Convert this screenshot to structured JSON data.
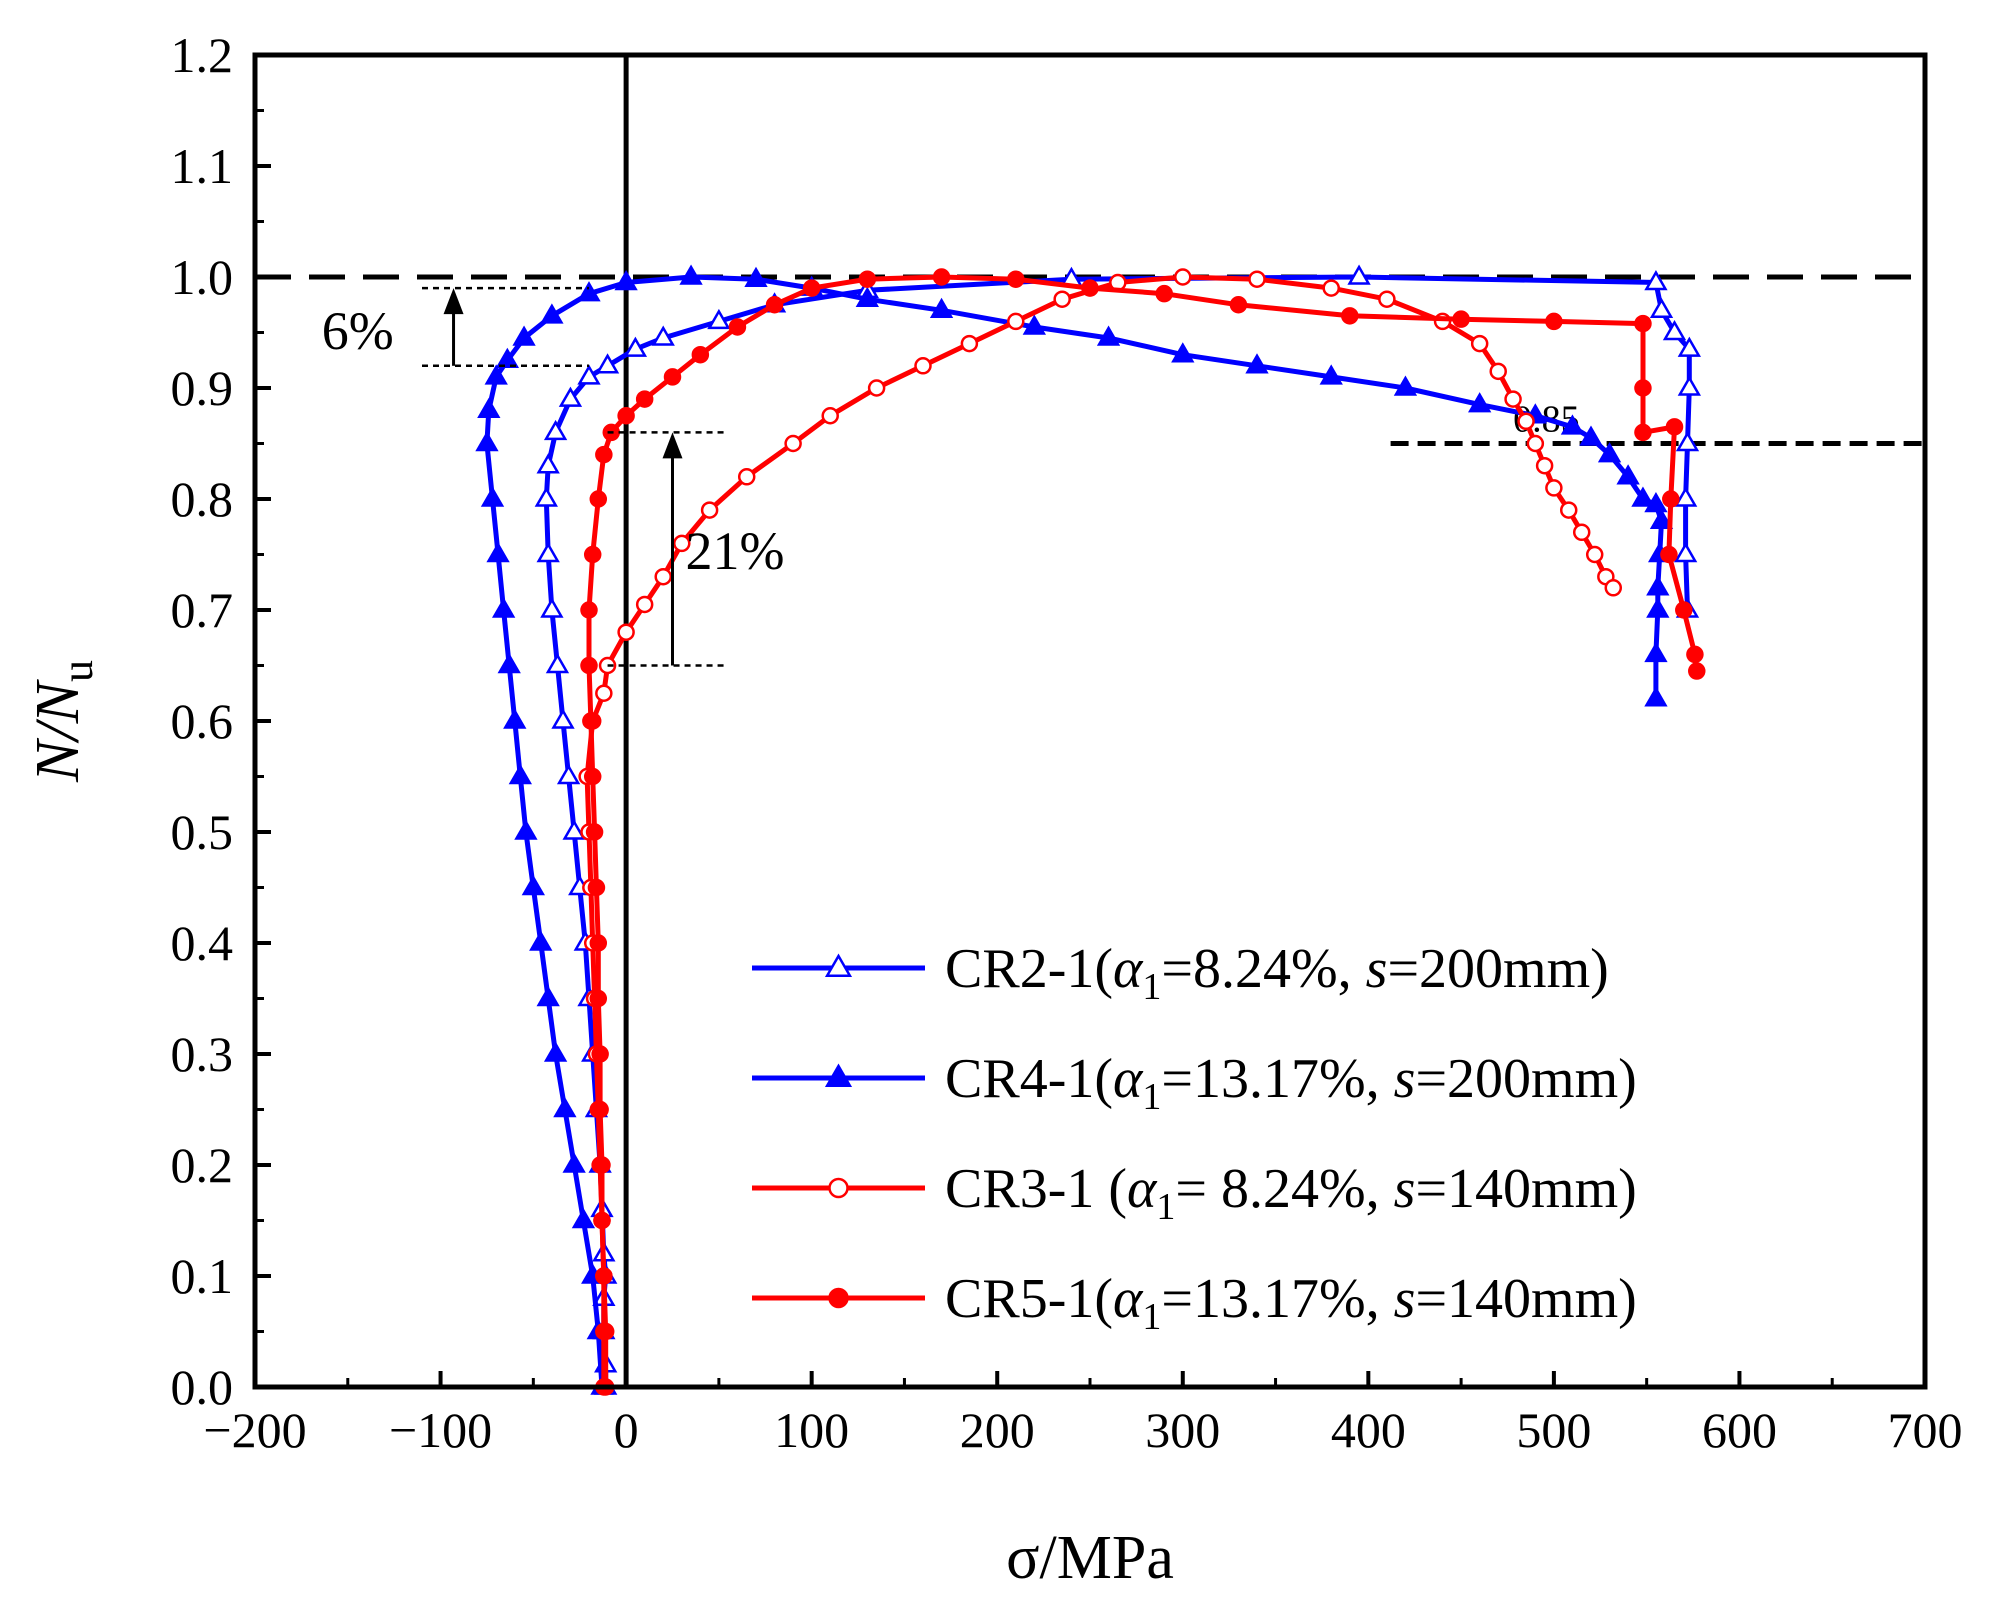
{
  "chart_data": {
    "type": "line",
    "title": "",
    "xlabel": "σ/MPa",
    "ylabel_main": "N/N",
    "ylabel_sub": "u",
    "xlim": [
      -200,
      700
    ],
    "ylim": [
      0,
      1.2
    ],
    "xticks": [
      -200,
      -100,
      0,
      100,
      200,
      300,
      400,
      500,
      600,
      700
    ],
    "xtick_labels": [
      "−200",
      "−100",
      "0",
      "100",
      "200",
      "300",
      "400",
      "500",
      "600",
      "700"
    ],
    "yticks": [
      0.0,
      0.1,
      0.2,
      0.3,
      0.4,
      0.5,
      0.6,
      0.7,
      0.8,
      0.9,
      1.0,
      1.1,
      1.2
    ],
    "ytick_labels": [
      "0.0",
      "0.1",
      "0.2",
      "0.3",
      "0.4",
      "0.5",
      "0.6",
      "0.7",
      "0.8",
      "0.9",
      "1.0",
      "1.1",
      "1.2"
    ],
    "grid": false,
    "legend_position": "bottom-right",
    "reference_lines": {
      "y_unit_line": 1.0,
      "x_zero_line": 0,
      "threshold_line": 0.85,
      "threshold_label": "0.85"
    },
    "annotations": [
      {
        "text": "6%",
        "x": -93,
        "y_from": 0.92,
        "y_to": 0.99
      },
      {
        "text": "21%",
        "x": 25,
        "y_from": 0.65,
        "y_to": 0.86
      }
    ],
    "series": [
      {
        "name": "CR2-1",
        "legend_prefix": "CR2-1(",
        "legend_alpha_value": "=8.24%, ",
        "legend_s_value": "=200mm)",
        "color": "#0000ff",
        "marker": "triangle-open",
        "points": [
          [
            -11,
            0.0
          ],
          [
            -11,
            0.02
          ],
          [
            -12,
            0.05
          ],
          [
            -12,
            0.08
          ],
          [
            -11,
            0.1
          ],
          [
            -12,
            0.12
          ],
          [
            -13,
            0.16
          ],
          [
            -14,
            0.2
          ],
          [
            -16,
            0.25
          ],
          [
            -18,
            0.3
          ],
          [
            -20,
            0.35
          ],
          [
            -22,
            0.4
          ],
          [
            -25,
            0.45
          ],
          [
            -28,
            0.5
          ],
          [
            -31,
            0.55
          ],
          [
            -34,
            0.6
          ],
          [
            -37,
            0.65
          ],
          [
            -40,
            0.7
          ],
          [
            -42,
            0.75
          ],
          [
            -43,
            0.8
          ],
          [
            -42,
            0.83
          ],
          [
            -38,
            0.86
          ],
          [
            -30,
            0.89
          ],
          [
            -20,
            0.91
          ],
          [
            -10,
            0.92
          ],
          [
            5,
            0.935
          ],
          [
            20,
            0.945
          ],
          [
            50,
            0.96
          ],
          [
            80,
            0.975
          ],
          [
            130,
            0.988
          ],
          [
            240,
            0.998
          ],
          [
            395,
            1.0
          ],
          [
            555,
            0.995
          ],
          [
            558,
            0.97
          ],
          [
            565,
            0.95
          ],
          [
            573,
            0.935
          ],
          [
            573,
            0.9
          ],
          [
            572,
            0.85
          ],
          [
            571,
            0.8
          ],
          [
            571,
            0.75
          ],
          [
            572,
            0.7
          ]
        ]
      },
      {
        "name": "CR4-1",
        "legend_prefix": "CR4-1(",
        "legend_alpha_value": "=13.17%, ",
        "legend_s_value": "=200mm)",
        "color": "#0000ff",
        "marker": "triangle-filled",
        "points": [
          [
            -13,
            0.0
          ],
          [
            -15,
            0.05
          ],
          [
            -18,
            0.1
          ],
          [
            -23,
            0.15
          ],
          [
            -28,
            0.2
          ],
          [
            -33,
            0.25
          ],
          [
            -38,
            0.3
          ],
          [
            -42,
            0.35
          ],
          [
            -46,
            0.4
          ],
          [
            -50,
            0.45
          ],
          [
            -54,
            0.5
          ],
          [
            -57,
            0.55
          ],
          [
            -60,
            0.6
          ],
          [
            -63,
            0.65
          ],
          [
            -66,
            0.7
          ],
          [
            -69,
            0.75
          ],
          [
            -72,
            0.8
          ],
          [
            -75,
            0.85
          ],
          [
            -74,
            0.88
          ],
          [
            -70,
            0.91
          ],
          [
            -64,
            0.925
          ],
          [
            -55,
            0.945
          ],
          [
            -40,
            0.965
          ],
          [
            -20,
            0.985
          ],
          [
            0,
            0.995
          ],
          [
            35,
            1.0
          ],
          [
            70,
            0.998
          ],
          [
            100,
            0.99
          ],
          [
            130,
            0.98
          ],
          [
            170,
            0.97
          ],
          [
            220,
            0.955
          ],
          [
            260,
            0.945
          ],
          [
            300,
            0.93
          ],
          [
            340,
            0.92
          ],
          [
            380,
            0.91
          ],
          [
            420,
            0.9
          ],
          [
            460,
            0.885
          ],
          [
            490,
            0.875
          ],
          [
            510,
            0.865
          ],
          [
            520,
            0.855
          ],
          [
            530,
            0.84
          ],
          [
            540,
            0.82
          ],
          [
            548,
            0.8
          ],
          [
            555,
            0.795
          ],
          [
            558,
            0.78
          ],
          [
            557,
            0.75
          ],
          [
            556,
            0.72
          ],
          [
            556,
            0.7
          ],
          [
            555,
            0.66
          ],
          [
            555,
            0.62
          ]
        ]
      },
      {
        "name": "CR3-1",
        "legend_prefix": "CR3-1 (",
        "legend_alpha_value": "= 8.24%, ",
        "legend_s_value": "=140mm)",
        "color": "#ff0000",
        "marker": "circle-open",
        "points": [
          [
            -11,
            0.0
          ],
          [
            -11,
            0.05
          ],
          [
            -12,
            0.1
          ],
          [
            -13,
            0.15
          ],
          [
            -14,
            0.2
          ],
          [
            -15,
            0.25
          ],
          [
            -16,
            0.3
          ],
          [
            -17,
            0.35
          ],
          [
            -18,
            0.4
          ],
          [
            -19,
            0.45
          ],
          [
            -20,
            0.5
          ],
          [
            -21,
            0.55
          ],
          [
            -18,
            0.6
          ],
          [
            -12,
            0.625
          ],
          [
            -10,
            0.65
          ],
          [
            0,
            0.68
          ],
          [
            10,
            0.705
          ],
          [
            20,
            0.73
          ],
          [
            30,
            0.76
          ],
          [
            45,
            0.79
          ],
          [
            65,
            0.82
          ],
          [
            90,
            0.85
          ],
          [
            110,
            0.875
          ],
          [
            135,
            0.9
          ],
          [
            160,
            0.92
          ],
          [
            185,
            0.94
          ],
          [
            210,
            0.96
          ],
          [
            235,
            0.98
          ],
          [
            265,
            0.995
          ],
          [
            300,
            1.0
          ],
          [
            340,
            0.998
          ],
          [
            380,
            0.99
          ],
          [
            410,
            0.98
          ],
          [
            440,
            0.96
          ],
          [
            460,
            0.94
          ],
          [
            470,
            0.915
          ],
          [
            478,
            0.89
          ],
          [
            485,
            0.87
          ],
          [
            490,
            0.85
          ],
          [
            495,
            0.83
          ],
          [
            500,
            0.81
          ],
          [
            508,
            0.79
          ],
          [
            515,
            0.77
          ],
          [
            522,
            0.75
          ],
          [
            528,
            0.73
          ],
          [
            532,
            0.72
          ]
        ]
      },
      {
        "name": "CR5-1",
        "legend_prefix": "CR5-1(",
        "legend_alpha_value": "=13.17%, ",
        "legend_s_value": "=140mm)",
        "color": "#ff0000",
        "marker": "circle-filled",
        "points": [
          [
            -12,
            0.0
          ],
          [
            -12,
            0.05
          ],
          [
            -12,
            0.1
          ],
          [
            -13,
            0.15
          ],
          [
            -13,
            0.2
          ],
          [
            -14,
            0.25
          ],
          [
            -14,
            0.3
          ],
          [
            -15,
            0.35
          ],
          [
            -15,
            0.4
          ],
          [
            -16,
            0.45
          ],
          [
            -17,
            0.5
          ],
          [
            -18,
            0.55
          ],
          [
            -19,
            0.6
          ],
          [
            -20,
            0.65
          ],
          [
            -20,
            0.7
          ],
          [
            -18,
            0.75
          ],
          [
            -15,
            0.8
          ],
          [
            -12,
            0.84
          ],
          [
            -8,
            0.86
          ],
          [
            0,
            0.875
          ],
          [
            10,
            0.89
          ],
          [
            25,
            0.91
          ],
          [
            40,
            0.93
          ],
          [
            60,
            0.955
          ],
          [
            80,
            0.975
          ],
          [
            100,
            0.99
          ],
          [
            130,
            0.998
          ],
          [
            170,
            1.0
          ],
          [
            210,
            0.998
          ],
          [
            250,
            0.99
          ],
          [
            290,
            0.985
          ],
          [
            330,
            0.975
          ],
          [
            390,
            0.965
          ],
          [
            450,
            0.962
          ],
          [
            500,
            0.96
          ],
          [
            548,
            0.958
          ],
          [
            548,
            0.9
          ],
          [
            548,
            0.86
          ],
          [
            565,
            0.865
          ],
          [
            563,
            0.8
          ],
          [
            562,
            0.75
          ],
          [
            570,
            0.7
          ],
          [
            576,
            0.66
          ],
          [
            577,
            0.645
          ]
        ]
      }
    ]
  }
}
